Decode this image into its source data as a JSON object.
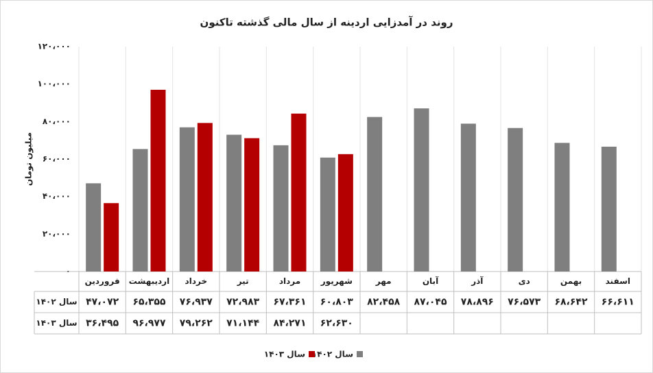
{
  "chart_data": {
    "type": "bar",
    "title": "روند در آمدزایی اردینه از سال مالی گذشته تاکنون",
    "y_label": "میلیون تومان",
    "categories": [
      "فروردین",
      "اردیبهشت",
      "خرداد",
      "تیر",
      "مرداد",
      "شهریور",
      "مهر",
      "آبان",
      "آذر",
      "دی",
      "بهمن",
      "اسفند"
    ],
    "series": [
      {
        "name": "سال ۱۴۰۲",
        "color": "#7f7f7f",
        "values": [
          47072,
          65355,
          76937,
          72983,
          67361,
          60803,
          82458,
          87045,
          78896,
          76573,
          68642,
          66611
        ],
        "value_labels": [
          "۴۷،۰۷۲",
          "۶۵،۳۵۵",
          "۷۶،۹۳۷",
          "۷۲،۹۸۳",
          "۶۷،۳۶۱",
          "۶۰،۸۰۳",
          "۸۲،۴۵۸",
          "۸۷،۰۴۵",
          "۷۸،۸۹۶",
          "۷۶،۵۷۳",
          "۶۸،۶۴۲",
          "۶۶،۶۱۱"
        ]
      },
      {
        "name": "سال ۱۴۰۳",
        "color": "#b40000",
        "values": [
          36495,
          96977,
          79262,
          71144,
          84271,
          62630,
          null,
          null,
          null,
          null,
          null,
          null
        ],
        "value_labels": [
          "۳۶،۴۹۵",
          "۹۶،۹۷۷",
          "۷۹،۲۶۲",
          "۷۱،۱۴۴",
          "۸۴،۲۷۱",
          "۶۲،۶۳۰",
          null,
          null,
          null,
          null,
          null,
          null
        ]
      }
    ],
    "ylim": [
      0,
      120000
    ],
    "yticks": [
      {
        "value": 0,
        "label": "۰"
      },
      {
        "value": 20000,
        "label": "۲۰،۰۰۰"
      },
      {
        "value": 40000,
        "label": "۴۰،۰۰۰"
      },
      {
        "value": 60000,
        "label": "۶۰،۰۰۰"
      },
      {
        "value": 80000,
        "label": "۸۰،۰۰۰"
      },
      {
        "value": 100000,
        "label": "۱۰۰،۰۰۰"
      },
      {
        "value": 120000,
        "label": "۱۲۰،۰۰۰"
      }
    ],
    "grid": false,
    "legend": "bottom"
  }
}
